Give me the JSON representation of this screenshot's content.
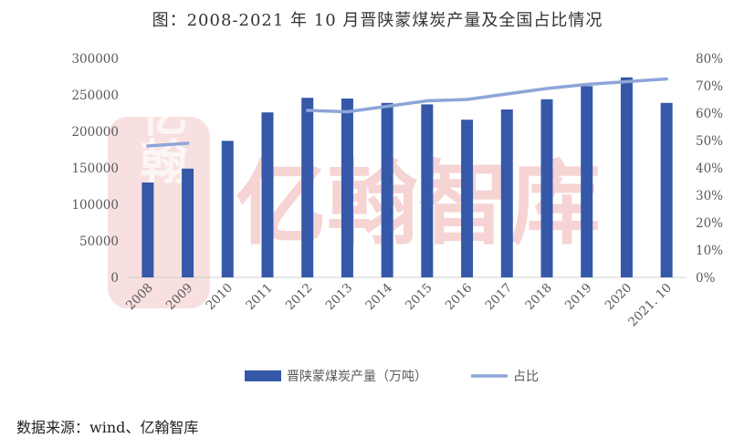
{
  "title": "图：2008-2021 年 10 月晋陕蒙煤炭产量及全国占比情况",
  "source": "数据来源：wind、亿翰智库",
  "watermark": {
    "text": "亿翰智库",
    "logo_text": "亿翰"
  },
  "colors": {
    "bar": "#3558A8",
    "line": "#8EA5D9",
    "watermark": "#F3C6C6",
    "axis": "#D0D0D0"
  },
  "chart_data": {
    "type": "bar",
    "categories": [
      "2008",
      "2009",
      "2010",
      "2011",
      "2012",
      "2013",
      "2014",
      "2015",
      "2016",
      "2017",
      "2018",
      "2019",
      "2020",
      "2021. 10"
    ],
    "series": [
      {
        "name": "晋陕蒙煤炭产量（万吨）",
        "type": "bar",
        "axis": "left",
        "values": [
          130000,
          149000,
          187000,
          226000,
          246000,
          245000,
          239000,
          237000,
          216000,
          230000,
          244000,
          262000,
          274000,
          239000
        ]
      },
      {
        "name": "占比",
        "type": "line",
        "axis": "right",
        "values": [
          0.48,
          0.49,
          null,
          null,
          0.61,
          0.605,
          0.625,
          0.645,
          0.65,
          0.67,
          0.69,
          0.705,
          0.715,
          0.725
        ]
      }
    ],
    "y_left": {
      "ticks": [
        "0",
        "50000",
        "100000",
        "150000",
        "200000",
        "250000",
        "300000"
      ],
      "ylim": [
        0,
        300000
      ]
    },
    "y_right": {
      "ticks": [
        "0%",
        "10%",
        "20%",
        "30%",
        "40%",
        "50%",
        "60%",
        "70%",
        "80%"
      ],
      "ylim": [
        0,
        0.8
      ]
    },
    "grid": false,
    "legend": "bottom"
  }
}
